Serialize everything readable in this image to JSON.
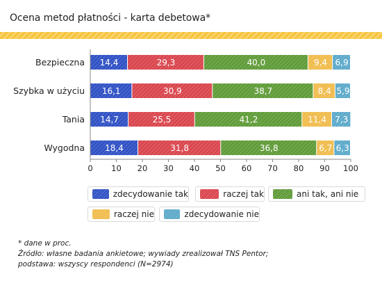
{
  "header": {
    "title": "Ocena metod płatności - karta debetowa*"
  },
  "chart_data": {
    "type": "bar",
    "orientation": "horizontal-stacked",
    "categories": [
      "Bezpieczna",
      "Szybka w użyciu",
      "Tania",
      "Wygodna"
    ],
    "series": [
      {
        "name": "zdecydowanie tak",
        "color": "#2d4fc4",
        "values": [
          14.4,
          16.1,
          14.7,
          18.4
        ]
      },
      {
        "name": "raczej tak",
        "color": "#d9434b",
        "values": [
          29.3,
          30.9,
          25.5,
          31.8
        ]
      },
      {
        "name": "ani tak, ani nie",
        "color": "#5d9a35",
        "values": [
          40.0,
          38.7,
          41.2,
          36.8
        ]
      },
      {
        "name": "raczej nie",
        "color": "#f0bb4a",
        "values": [
          9.4,
          8.4,
          11.4,
          6.7
        ]
      },
      {
        "name": "zdecydowanie nie",
        "color": "#5aa8c9",
        "values": [
          6.9,
          5.9,
          7.3,
          6.3
        ]
      }
    ],
    "value_labels": [
      [
        "14,4",
        "29,3",
        "40,0",
        "9,4",
        "6,9"
      ],
      [
        "16,1",
        "30,9",
        "38,7",
        "8,4",
        "5,9"
      ],
      [
        "14,7",
        "25,5",
        "41,2",
        "11,4",
        "7,3"
      ],
      [
        "18,4",
        "31,8",
        "36,8",
        "6,7",
        "6,3"
      ]
    ],
    "xlim": [
      0,
      100
    ],
    "xticks": [
      "0",
      "10",
      "20",
      "30",
      "40",
      "50",
      "60",
      "70",
      "80",
      "90",
      "100"
    ],
    "grid": false,
    "legend_placement": "bottom"
  },
  "notes": {
    "line1": "* dane w proc.",
    "line2": "Źródło: własne badania ankietowe; wywiady zrealizował TNS Pentor;",
    "line3": "podstawa: wszyscy respondenci (N=2974)"
  }
}
